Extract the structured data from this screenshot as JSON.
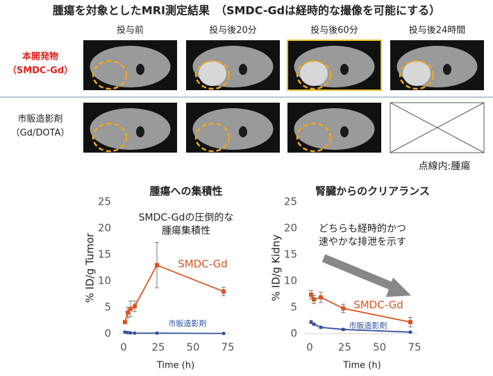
{
  "mri": {
    "title": "腫瘍を対象としたMRI測定結果　（SMDC-Gdは経時的な撮像を可能にする）",
    "columns": [
      "投与前",
      "投与後20分",
      "投与後60分",
      "投与後24時間"
    ],
    "rows": [
      [
        "本開発物",
        "（SMDC-Gd）"
      ],
      [
        "市販造影剤",
        "（Gd/DOTA）"
      ]
    ],
    "note": "点線内:腫瘍"
  },
  "chart_data": [
    {
      "type": "line",
      "title": "腫瘍への集積性",
      "x_label": "Time (h)",
      "y_label": "% ID/g Tumor",
      "annotation": [
        "SMDC-Gdの圧倒的な",
        "腫瘍集積性"
      ],
      "xlim": [
        0,
        75
      ],
      "xticks": [
        0,
        25,
        50,
        75
      ],
      "ylim": [
        0,
        25
      ],
      "yticks": [
        0,
        5,
        10,
        15,
        20,
        25
      ],
      "x": [
        1,
        3,
        5,
        8,
        24,
        72
      ],
      "series": [
        {
          "name": "SMDC-Gd",
          "color": "#d9541e",
          "values": [
            2.2,
            4,
            4.7,
            5.2,
            13,
            8
          ],
          "errors": [
            0.3,
            1,
            1.5,
            1,
            4.3,
            0.8
          ]
        },
        {
          "name": "市販造影剤",
          "color": "#2e4fa0",
          "values": [
            0.3,
            0.2,
            0.15,
            0.1,
            0.1,
            0.05
          ],
          "errors": [
            0.05,
            0.05,
            0.05,
            0.05,
            0.05,
            0.05
          ]
        }
      ]
    },
    {
      "type": "line",
      "title": "腎臓からのクリアランス",
      "x_label": "Time (h)",
      "y_label": "% ID/g Kidny",
      "annotation": [
        "どちらも経時的かつ",
        "速やかな排泄を示す"
      ],
      "xlim": [
        0,
        75
      ],
      "xticks": [
        0,
        25,
        50,
        75
      ],
      "ylim": [
        0,
        25
      ],
      "yticks": [
        0,
        5,
        10,
        15,
        20,
        25
      ],
      "x": [
        1,
        3,
        8,
        24,
        72
      ],
      "series": [
        {
          "name": "SMDC-Gd",
          "color": "#d9541e",
          "values": [
            7.4,
            6.5,
            6.9,
            4.8,
            2.2
          ],
          "errors": [
            0.8,
            0.8,
            1,
            0.8,
            0.9
          ]
        },
        {
          "name": "市販造影剤",
          "color": "#2e4fa0",
          "values": [
            2.2,
            1.8,
            1.2,
            0.8,
            0.3
          ],
          "errors": [
            0.3,
            0.2,
            0.2,
            0.2,
            0.1
          ]
        }
      ]
    }
  ]
}
